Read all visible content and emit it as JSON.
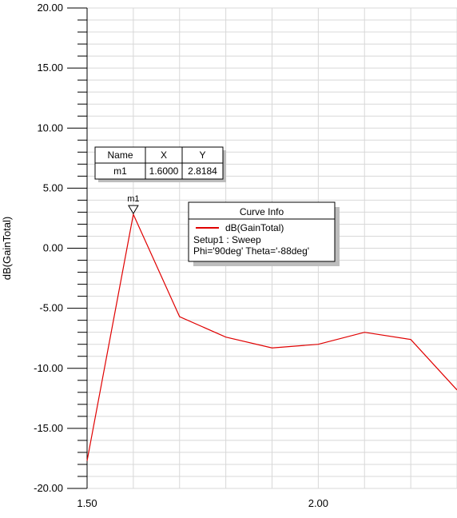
{
  "chart_data": {
    "type": "line",
    "ylabel": "dB(GainTotal)",
    "xlim": [
      1.5,
      2.3
    ],
    "ylim": [
      -20,
      20
    ],
    "y_ticks": [
      20,
      15,
      10,
      5,
      0,
      -5,
      -10,
      -15,
      -20
    ],
    "y_tick_labels": [
      "20.00",
      "15.00",
      "10.00",
      "5.00",
      "0.00",
      "-5.00",
      "-10.00",
      "-15.00",
      "-20.00"
    ],
    "x_ticks": [
      1.5,
      2.0
    ],
    "x_tick_labels": [
      "1.50",
      "2.00"
    ],
    "grid": true,
    "series": [
      {
        "name": "dB(GainTotal)",
        "color": "#e00000",
        "x": [
          1.5,
          1.6,
          1.7,
          1.8,
          1.9,
          2.0,
          2.1,
          2.2,
          2.3
        ],
        "y": [
          -17.7,
          2.8184,
          -5.7,
          -7.4,
          -8.3,
          -8.0,
          -7.0,
          -7.6,
          -11.8
        ]
      }
    ],
    "marker": {
      "label": "m1",
      "x": 1.6,
      "y": 2.8184
    },
    "marker_table": {
      "headers": [
        "Name",
        "X",
        "Y"
      ],
      "rows": [
        [
          "m1",
          "1.6000",
          "2.8184"
        ]
      ]
    },
    "curve_info": {
      "title": "Curve Info",
      "legend_label": "dB(GainTotal)",
      "lines": [
        "Setup1 : Sweep",
        "Phi='90deg' Theta='-88deg'"
      ]
    }
  }
}
